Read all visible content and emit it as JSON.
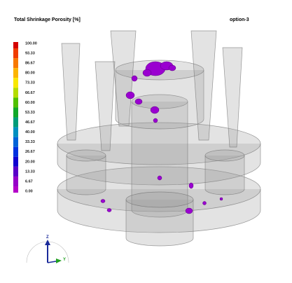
{
  "header": {
    "title": "Total Shrinkage Porosity [%]",
    "option": "option-3"
  },
  "legend": {
    "entries": [
      {
        "label": "100.00",
        "color": "#d40000"
      },
      {
        "label": "93.33",
        "color": "#f03c00"
      },
      {
        "label": "86.67",
        "color": "#f87800"
      },
      {
        "label": "80.00",
        "color": "#fcb400"
      },
      {
        "label": "73.33",
        "color": "#f8e800"
      },
      {
        "label": "66.67",
        "color": "#b4dc00"
      },
      {
        "label": "60.00",
        "color": "#50c000"
      },
      {
        "label": "53.33",
        "color": "#10a828"
      },
      {
        "label": "46.67",
        "color": "#009c78"
      },
      {
        "label": "40.00",
        "color": "#0090c0"
      },
      {
        "label": "33.33",
        "color": "#0064d8"
      },
      {
        "label": "26.67",
        "color": "#0032e0"
      },
      {
        "label": "20.00",
        "color": "#1000d0"
      },
      {
        "label": "13.33",
        "color": "#5a00c8"
      },
      {
        "label": "6.67",
        "color": "#9600c8"
      },
      {
        "label": "0.00",
        "color": "#b400c8"
      }
    ]
  },
  "axes": {
    "z": "Z",
    "y": "Y"
  }
}
